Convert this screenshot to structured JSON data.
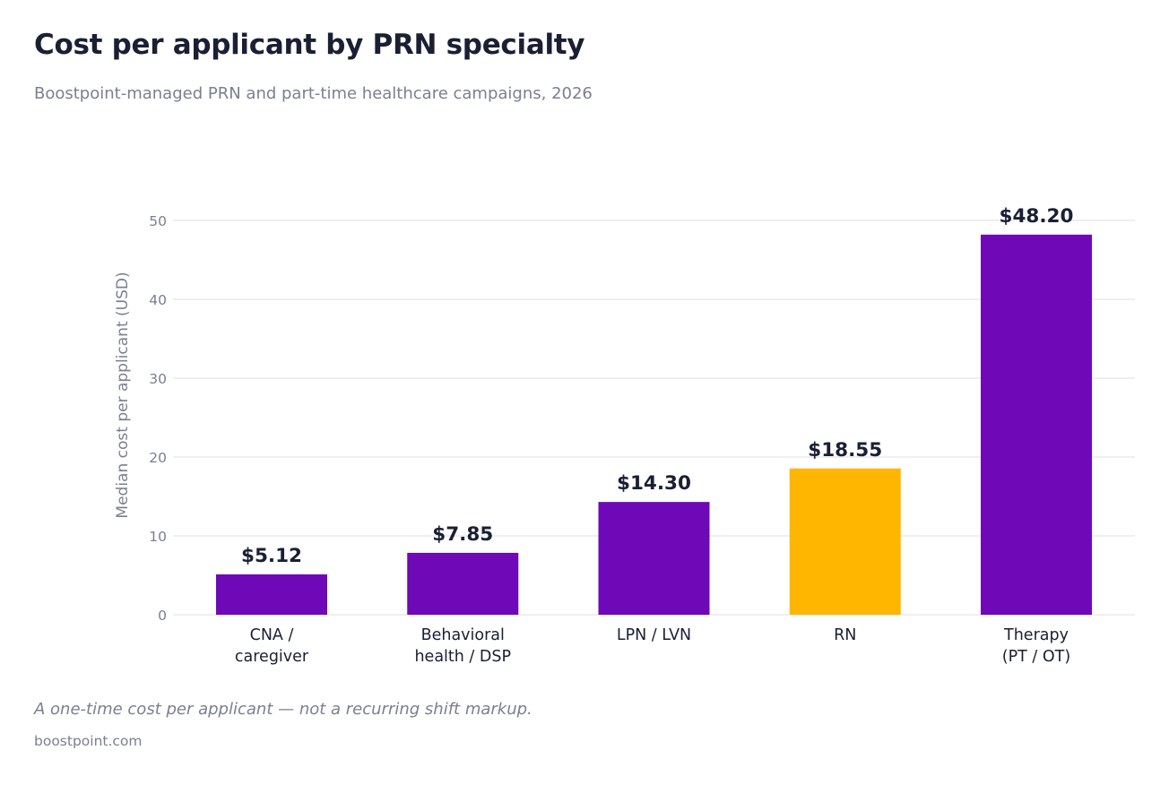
{
  "title": "Cost per applicant by PRN specialty",
  "subtitle": "Boostpoint-managed PRN and part-time healthcare campaigns, 2026",
  "footnote": "A one-time cost per applicant — not a recurring shift markup.",
  "source": "boostpoint.com",
  "colors": {
    "default_bar": "#6f08b6",
    "highlight_bar": "#ffb600",
    "grid": "#e4e5ec",
    "axis_text": "#7b7f90",
    "category_text": "#1b1f33",
    "value_text": "#1b1f33"
  },
  "chart_data": {
    "type": "bar",
    "ylabel": "Median cost per applicant (USD)",
    "xlabel": "",
    "ylim": [
      0,
      50
    ],
    "yticks": [
      "0",
      "10",
      "20",
      "30",
      "40",
      "50"
    ],
    "grid": true,
    "categories": [
      [
        "CNA /",
        "caregiver"
      ],
      [
        "Behavioral",
        "health / DSP"
      ],
      [
        "LPN / LVN"
      ],
      [
        "RN"
      ],
      [
        "Therapy",
        "(PT / OT)"
      ]
    ],
    "values": [
      5.12,
      7.85,
      14.3,
      18.55,
      48.2
    ],
    "value_labels": [
      "$5.12",
      "$7.85",
      "$14.30",
      "$18.55",
      "$48.20"
    ],
    "highlight": "RN"
  }
}
